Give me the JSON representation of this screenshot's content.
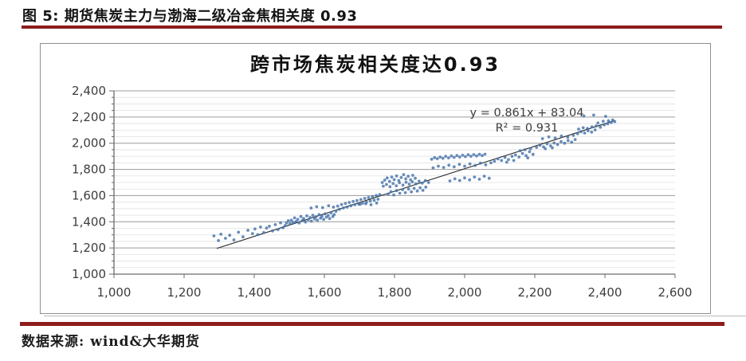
{
  "header": {
    "title": "图 5: 期货焦炭主力与渤海二级冶金焦相关度 0.93"
  },
  "footer": {
    "source": "数据来源: wind&大华期货"
  },
  "colors": {
    "rule_red": "#8e1c1c",
    "dot_blue": "#4573a9",
    "grid_minor": "#e0e0e0",
    "grid_major": "#9e9e9e",
    "axis": "#6b6b6b",
    "tick_label": "#3d3d3d",
    "trend_line": "#262626",
    "panel_border": "#8f8f8f"
  },
  "chart_data": {
    "type": "scatter",
    "title": "跨市场焦炭相关度达0.93",
    "annotation": {
      "line1": "y = 0.861x + 83.04",
      "line2": "R² = 0.931"
    },
    "xlabel": "",
    "ylabel": "",
    "xlim": [
      1000,
      2600
    ],
    "ylim": [
      1000,
      2400
    ],
    "x_ticks": [
      {
        "v": 1000,
        "label": "1,000"
      },
      {
        "v": 1200,
        "label": "1,200"
      },
      {
        "v": 1400,
        "label": "1,400"
      },
      {
        "v": 1600,
        "label": "1,600"
      },
      {
        "v": 1800,
        "label": "1,800"
      },
      {
        "v": 2000,
        "label": "2,000"
      },
      {
        "v": 2200,
        "label": "2,200"
      },
      {
        "v": 2400,
        "label": "2,400"
      },
      {
        "v": 2600,
        "label": "2,600"
      }
    ],
    "y_ticks": [
      {
        "v": 1000,
        "label": "1,000"
      },
      {
        "v": 1200,
        "label": "1,200"
      },
      {
        "v": 1400,
        "label": "1,400"
      },
      {
        "v": 1600,
        "label": "1,600"
      },
      {
        "v": 1800,
        "label": "1,800"
      },
      {
        "v": 2000,
        "label": "2,000"
      },
      {
        "v": 2200,
        "label": "2,200"
      },
      {
        "v": 2400,
        "label": "2,400"
      }
    ],
    "y_minor_step": 50,
    "grid": "horizontal-only",
    "legend": "none",
    "trendline": {
      "slope": 0.861,
      "intercept": 83.04,
      "x_start": 1293,
      "x_end": 2428,
      "r_squared": 0.931
    },
    "points": [
      [
        1285,
        1292
      ],
      [
        1298,
        1256
      ],
      [
        1305,
        1305
      ],
      [
        1318,
        1274
      ],
      [
        1330,
        1297
      ],
      [
        1342,
        1262
      ],
      [
        1355,
        1320
      ],
      [
        1368,
        1285
      ],
      [
        1382,
        1335
      ],
      [
        1395,
        1310
      ],
      [
        1402,
        1345
      ],
      [
        1410,
        1302
      ],
      [
        1418,
        1360
      ],
      [
        1427,
        1318
      ],
      [
        1435,
        1352
      ],
      [
        1443,
        1366
      ],
      [
        1452,
        1330
      ],
      [
        1460,
        1378
      ],
      [
        1468,
        1340
      ],
      [
        1475,
        1392
      ],
      [
        1482,
        1355
      ],
      [
        1488,
        1370
      ],
      [
        1492,
        1390
      ],
      [
        1497,
        1408
      ],
      [
        1502,
        1386
      ],
      [
        1506,
        1412
      ],
      [
        1511,
        1395
      ],
      [
        1515,
        1430
      ],
      [
        1519,
        1402
      ],
      [
        1524,
        1418
      ],
      [
        1528,
        1391
      ],
      [
        1533,
        1440
      ],
      [
        1537,
        1410
      ],
      [
        1541,
        1425
      ],
      [
        1546,
        1398
      ],
      [
        1550,
        1445
      ],
      [
        1554,
        1415
      ],
      [
        1559,
        1432
      ],
      [
        1563,
        1405
      ],
      [
        1567,
        1450
      ],
      [
        1572,
        1422
      ],
      [
        1576,
        1438
      ],
      [
        1580,
        1412
      ],
      [
        1585,
        1455
      ],
      [
        1589,
        1428
      ],
      [
        1593,
        1442
      ],
      [
        1598,
        1418
      ],
      [
        1602,
        1460
      ],
      [
        1606,
        1435
      ],
      [
        1611,
        1448
      ],
      [
        1615,
        1425
      ],
      [
        1619,
        1468
      ],
      [
        1624,
        1440
      ],
      [
        1628,
        1455
      ],
      [
        1562,
        1505
      ],
      [
        1578,
        1515
      ],
      [
        1595,
        1508
      ],
      [
        1612,
        1522
      ],
      [
        1626,
        1512
      ],
      [
        1633,
        1480
      ],
      [
        1638,
        1520
      ],
      [
        1643,
        1495
      ],
      [
        1649,
        1532
      ],
      [
        1654,
        1505
      ],
      [
        1660,
        1540
      ],
      [
        1665,
        1512
      ],
      [
        1671,
        1548
      ],
      [
        1676,
        1522
      ],
      [
        1682,
        1555
      ],
      [
        1687,
        1530
      ],
      [
        1693,
        1562
      ],
      [
        1698,
        1535
      ],
      [
        1704,
        1570
      ],
      [
        1709,
        1542
      ],
      [
        1715,
        1578
      ],
      [
        1720,
        1550
      ],
      [
        1726,
        1585
      ],
      [
        1731,
        1558
      ],
      [
        1737,
        1592
      ],
      [
        1742,
        1565
      ],
      [
        1748,
        1600
      ],
      [
        1753,
        1572
      ],
      [
        1758,
        1608
      ],
      [
        1702,
        1533
      ],
      [
        1718,
        1538
      ],
      [
        1733,
        1530
      ],
      [
        1749,
        1543
      ],
      [
        1765,
        1700
      ],
      [
        1772,
        1718
      ],
      [
        1779,
        1735
      ],
      [
        1786,
        1708
      ],
      [
        1792,
        1742
      ],
      [
        1799,
        1722
      ],
      [
        1806,
        1750
      ],
      [
        1812,
        1715
      ],
      [
        1819,
        1738
      ],
      [
        1826,
        1760
      ],
      [
        1832,
        1728
      ],
      [
        1839,
        1748
      ],
      [
        1846,
        1720
      ],
      [
        1852,
        1755
      ],
      [
        1859,
        1732
      ],
      [
        1782,
        1612
      ],
      [
        1790,
        1630
      ],
      [
        1798,
        1605
      ],
      [
        1806,
        1638
      ],
      [
        1815,
        1618
      ],
      [
        1823,
        1645
      ],
      [
        1831,
        1622
      ],
      [
        1840,
        1650
      ],
      [
        1848,
        1628
      ],
      [
        1856,
        1655
      ],
      [
        1865,
        1635
      ],
      [
        1873,
        1660
      ],
      [
        1881,
        1640
      ],
      [
        1889,
        1665
      ],
      [
        1768,
        1672
      ],
      [
        1777,
        1685
      ],
      [
        1787,
        1668
      ],
      [
        1796,
        1692
      ],
      [
        1805,
        1675
      ],
      [
        1814,
        1698
      ],
      [
        1824,
        1680
      ],
      [
        1833,
        1702
      ],
      [
        1842,
        1688
      ],
      [
        1851,
        1705
      ],
      [
        1861,
        1690
      ],
      [
        1870,
        1710
      ],
      [
        1879,
        1695
      ],
      [
        1888,
        1715
      ],
      [
        1897,
        1700
      ],
      [
        1906,
        1878
      ],
      [
        1914,
        1890
      ],
      [
        1922,
        1882
      ],
      [
        1930,
        1895
      ],
      [
        1938,
        1885
      ],
      [
        1946,
        1900
      ],
      [
        1954,
        1888
      ],
      [
        1962,
        1903
      ],
      [
        1970,
        1892
      ],
      [
        1978,
        1906
      ],
      [
        1986,
        1895
      ],
      [
        1994,
        1908
      ],
      [
        2002,
        1898
      ],
      [
        2010,
        1912
      ],
      [
        2018,
        1900
      ],
      [
        2026,
        1913
      ],
      [
        2034,
        1903
      ],
      [
        2042,
        1915
      ],
      [
        2050,
        1905
      ],
      [
        2058,
        1916
      ],
      [
        1910,
        1812
      ],
      [
        1925,
        1825
      ],
      [
        1940,
        1815
      ],
      [
        1955,
        1832
      ],
      [
        1970,
        1820
      ],
      [
        1985,
        1838
      ],
      [
        2000,
        1825
      ],
      [
        2015,
        1842
      ],
      [
        2030,
        1830
      ],
      [
        2045,
        1848
      ],
      [
        2060,
        1835
      ],
      [
        2075,
        1850
      ],
      [
        1958,
        1712
      ],
      [
        1972,
        1728
      ],
      [
        1986,
        1715
      ],
      [
        2000,
        1735
      ],
      [
        2014,
        1720
      ],
      [
        2028,
        1742
      ],
      [
        2042,
        1725
      ],
      [
        2056,
        1748
      ],
      [
        2070,
        1732
      ],
      [
        2085,
        1862
      ],
      [
        2095,
        1880
      ],
      [
        2105,
        1868
      ],
      [
        2115,
        1892
      ],
      [
        2125,
        1875
      ],
      [
        2135,
        1900
      ],
      [
        2145,
        1910
      ],
      [
        2155,
        1895
      ],
      [
        2165,
        1922
      ],
      [
        2175,
        1905
      ],
      [
        2185,
        1935
      ],
      [
        2195,
        1915
      ],
      [
        2158,
        1942
      ],
      [
        2172,
        1950
      ],
      [
        2188,
        1958
      ],
      [
        2120,
        1855
      ],
      [
        2140,
        1868
      ],
      [
        2180,
        1888
      ],
      [
        2205,
        1968
      ],
      [
        2215,
        1985
      ],
      [
        2225,
        1972
      ],
      [
        2235,
        1995
      ],
      [
        2245,
        1980
      ],
      [
        2255,
        2002
      ],
      [
        2265,
        1990
      ],
      [
        2275,
        2012
      ],
      [
        2285,
        2000
      ],
      [
        2295,
        2020
      ],
      [
        2305,
        2008
      ],
      [
        2315,
        2028
      ],
      [
        2222,
        2035
      ],
      [
        2240,
        2048
      ],
      [
        2258,
        2040
      ],
      [
        2276,
        2055
      ],
      [
        2294,
        2045
      ],
      [
        2310,
        2060
      ],
      [
        2230,
        1958
      ],
      [
        2250,
        1965
      ],
      [
        2322,
        2072
      ],
      [
        2332,
        2088
      ],
      [
        2342,
        2078
      ],
      [
        2352,
        2095
      ],
      [
        2362,
        2085
      ],
      [
        2372,
        2102
      ],
      [
        2325,
        2108
      ],
      [
        2338,
        2118
      ],
      [
        2350,
        2112
      ],
      [
        2363,
        2125
      ],
      [
        2375,
        2132
      ],
      [
        2387,
        2122
      ],
      [
        2398,
        2140
      ],
      [
        2408,
        2148
      ],
      [
        2418,
        2158
      ],
      [
        2428,
        2165
      ],
      [
        2395,
        2168
      ],
      [
        2410,
        2172
      ],
      [
        2422,
        2178
      ],
      [
        2380,
        2155
      ],
      [
        2340,
        2208
      ],
      [
        2368,
        2215
      ],
      [
        2402,
        2205
      ]
    ]
  }
}
